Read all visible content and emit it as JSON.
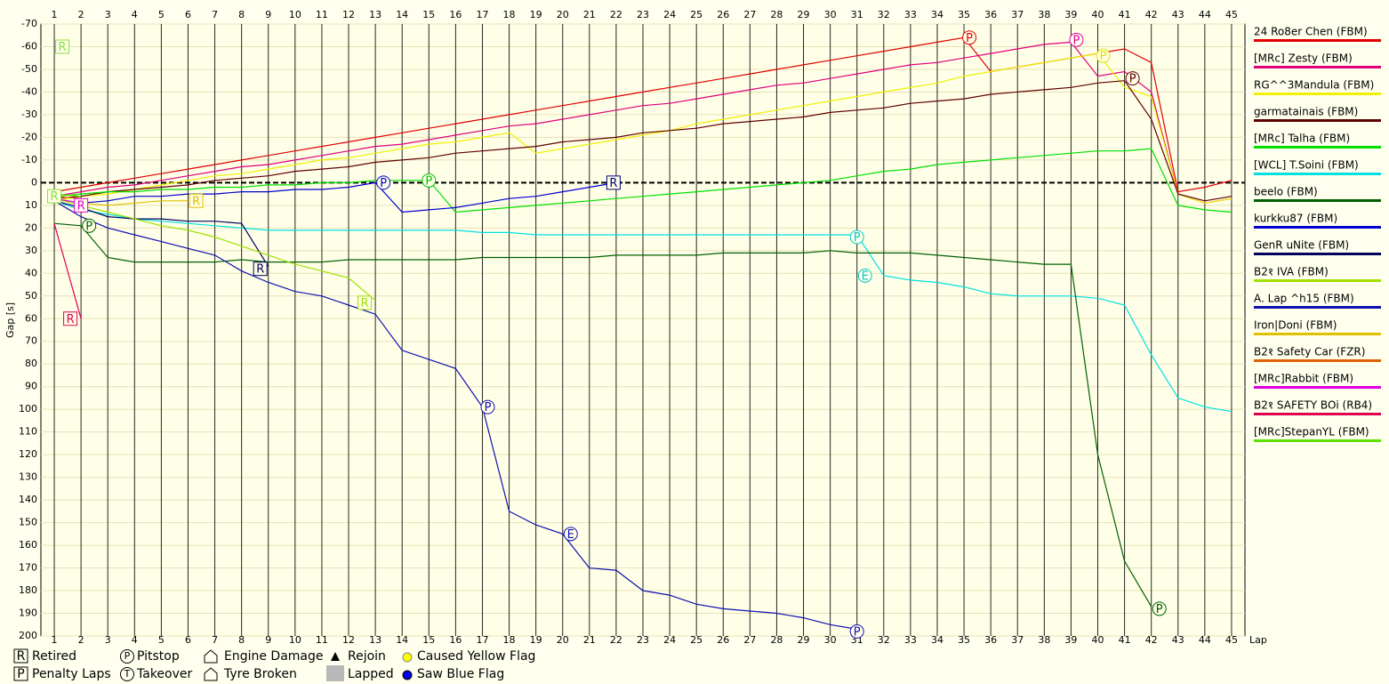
{
  "chart_data": {
    "type": "line",
    "ylabel": "Gap [s]",
    "xlabel": "Lap",
    "xlim": [
      0.5,
      45.5
    ],
    "xticks": [
      1,
      2,
      3,
      4,
      5,
      6,
      7,
      8,
      9,
      10,
      11,
      12,
      13,
      14,
      15,
      16,
      17,
      18,
      19,
      20,
      21,
      22,
      23,
      24,
      25,
      26,
      27,
      28,
      29,
      30,
      31,
      32,
      33,
      34,
      35,
      36,
      37,
      38,
      39,
      40,
      41,
      42,
      43,
      44,
      45
    ],
    "ylim": [
      -70,
      200
    ],
    "yticks": [
      -70,
      -60,
      -50,
      -40,
      -30,
      -20,
      -10,
      0,
      10,
      20,
      30,
      40,
      50,
      60,
      70,
      80,
      90,
      100,
      110,
      120,
      130,
      140,
      150,
      160,
      170,
      180,
      190,
      200
    ],
    "y_inverted": true,
    "grid": true,
    "x": [
      1,
      2,
      3,
      4,
      5,
      6,
      7,
      8,
      9,
      10,
      11,
      12,
      13,
      14,
      15,
      16,
      17,
      18,
      19,
      20,
      21,
      22,
      23,
      24,
      25,
      26,
      27,
      28,
      29,
      30,
      31,
      32,
      33,
      34,
      35,
      36,
      37,
      38,
      39,
      40,
      41,
      42,
      43,
      44,
      45
    ],
    "series": [
      {
        "name": "24 Ro8er Chen (FBM)",
        "color": "#e00000",
        "values": [
          4,
          2,
          0,
          -2,
          -4,
          -6,
          -8,
          -10,
          -12,
          -14,
          -16,
          -18,
          -20,
          -22,
          -24,
          -26,
          -28,
          -30,
          -32,
          -34,
          -36,
          -38,
          -40,
          -42,
          -44,
          -46,
          -48,
          -50,
          -52,
          -54,
          -56,
          -58,
          -60,
          -62,
          -64,
          -49,
          -51,
          -53,
          -55,
          -57,
          -59,
          -53,
          4,
          2,
          -1
        ]
      },
      {
        "name": "[MRc] Zesty (FBM)",
        "color": "#e0007a",
        "values": [
          6,
          4,
          2,
          1,
          -1,
          -3,
          -5,
          -7,
          -8,
          -10,
          -12,
          -14,
          -16,
          -17,
          -19,
          -21,
          -23,
          -25,
          -26,
          -28,
          -30,
          -32,
          -34,
          -35,
          -37,
          -39,
          -41,
          -43,
          -44,
          -46,
          -48,
          -50,
          -52,
          -53,
          -55,
          -57,
          -59,
          -61,
          -62,
          -47,
          -49,
          -40,
          5,
          9,
          7
        ]
      },
      {
        "name": "RG^^3Mandula (FBM)",
        "color": "#f0f000",
        "values": [
          8,
          6,
          5,
          3,
          1,
          -1,
          -3,
          -4,
          -6,
          -8,
          -10,
          -11,
          -13,
          -15,
          -17,
          -18,
          -20,
          -22,
          -13,
          -15,
          -17,
          -19,
          -21,
          -23,
          -26,
          -28,
          -30,
          -32,
          -34,
          -36,
          -38,
          -40,
          -42,
          -44,
          -47,
          -49,
          -51,
          -53,
          -55,
          -57,
          -42,
          -38,
          5,
          9,
          7
        ]
      },
      {
        "name": "garmatainais (FBM)",
        "color": "#600000",
        "values": [
          7,
          6,
          4,
          3,
          2,
          1,
          -1,
          -2,
          -3,
          -5,
          -6,
          -7,
          -9,
          -10,
          -11,
          -13,
          -14,
          -15,
          -16,
          -18,
          -19,
          -20,
          -22,
          -23,
          -24,
          -26,
          -27,
          -28,
          -29,
          -31,
          -32,
          -33,
          -35,
          -36,
          -37,
          -39,
          -40,
          -41,
          -42,
          -44,
          -45,
          -28,
          5,
          8,
          6
        ]
      },
      {
        "name": "[MRc] Talha (FBM)",
        "color": "#00e000",
        "values": [
          6,
          5,
          4,
          4,
          3,
          3,
          2,
          2,
          1,
          1,
          0,
          0,
          -1,
          -1,
          -1,
          13,
          12,
          11,
          10,
          9,
          8,
          7,
          6,
          5,
          4,
          3,
          2,
          1,
          0,
          -1,
          -3,
          -5,
          -6,
          -8,
          -9,
          -10,
          -11,
          -12,
          -13,
          -14,
          -14,
          -15,
          10,
          12,
          13
        ]
      },
      {
        "name": "[WCL] T.Soini (FBM)",
        "color": "#00e0e0",
        "values": [
          8,
          12,
          14,
          16,
          17,
          18,
          19,
          20,
          21,
          21,
          21,
          21,
          21,
          21,
          21,
          21,
          22,
          22,
          23,
          23,
          23,
          23,
          23,
          23,
          23,
          23,
          23,
          23,
          23,
          23,
          23,
          41,
          43,
          44,
          46,
          49,
          50,
          50,
          50,
          51,
          54,
          76,
          95,
          99,
          101
        ]
      },
      {
        "name": "beelo (FBM)",
        "color": "#006000",
        "values": [
          18,
          19,
          33,
          35,
          35,
          35,
          35,
          34,
          35,
          35,
          35,
          34,
          34,
          34,
          34,
          34,
          33,
          33,
          33,
          33,
          33,
          32,
          32,
          32,
          32,
          31,
          31,
          31,
          31,
          30,
          31,
          31,
          31,
          32,
          33,
          34,
          35,
          36,
          36,
          120,
          167,
          187,
          null,
          null,
          null
        ]
      },
      {
        "name": "kurkku87 (FBM)",
        "color": "#0000d0",
        "values": [
          7,
          9,
          8,
          6,
          6,
          5,
          5,
          4,
          4,
          3,
          3,
          2,
          0,
          13,
          12,
          11,
          9,
          7,
          6,
          4,
          2,
          0,
          null,
          null,
          null,
          null,
          null,
          null,
          null,
          null,
          null,
          null,
          null,
          null,
          null,
          null,
          null,
          null,
          null,
          null,
          null,
          null,
          null,
          null,
          null
        ]
      },
      {
        "name": "GenR uNite (FBM)",
        "color": "#000060",
        "values": [
          8,
          11,
          15,
          16,
          16,
          17,
          17,
          18,
          37,
          null,
          null,
          null,
          null,
          null,
          null,
          null,
          null,
          null,
          null,
          null,
          null,
          null,
          null,
          null,
          null,
          null,
          null,
          null,
          null,
          null,
          null,
          null,
          null,
          null,
          null,
          null,
          null,
          null,
          null,
          null,
          null,
          null,
          null,
          null,
          null
        ]
      },
      {
        "name": "B2१ IVA (FBM)",
        "color": "#a0e000",
        "values": [
          7,
          10,
          13,
          16,
          19,
          21,
          24,
          28,
          32,
          36,
          39,
          42,
          52,
          null,
          null,
          null,
          null,
          null,
          null,
          null,
          null,
          null,
          null,
          null,
          null,
          null,
          null,
          null,
          null,
          null,
          null,
          null,
          null,
          null,
          null,
          null,
          null,
          null,
          null,
          null,
          null,
          null,
          null,
          null,
          null
        ]
      },
      {
        "name": "A. Lap ^h15 (FBM)",
        "color": "#1010b0",
        "values": [
          8,
          15,
          20,
          23,
          26,
          29,
          32,
          39,
          44,
          48,
          50,
          54,
          58,
          74,
          78,
          82,
          99,
          145,
          151,
          155,
          170,
          171,
          180,
          182,
          186,
          188,
          189,
          190,
          192,
          195,
          197,
          null,
          null,
          null,
          null,
          null,
          null,
          null,
          null,
          null,
          null,
          null,
          null,
          null,
          null
        ]
      },
      {
        "name": "Iron|Doni (FBM)",
        "color": "#e0c000",
        "values": [
          7,
          9,
          10,
          9,
          8,
          8,
          null,
          null,
          null,
          null,
          null,
          null,
          null,
          null,
          null,
          null,
          null,
          null,
          null,
          null,
          null,
          null,
          null,
          null,
          null,
          null,
          null,
          null,
          null,
          null,
          null,
          null,
          null,
          null,
          null,
          null,
          null,
          null,
          null,
          null,
          null,
          null,
          null,
          null,
          null
        ]
      },
      {
        "name": "B2१ Safety Car (FZR)",
        "color": "#e06000",
        "values": [
          6,
          7,
          null,
          null,
          null,
          null,
          null,
          null,
          null,
          null,
          null,
          null,
          null,
          null,
          null,
          null,
          null,
          null,
          null,
          null,
          null,
          null,
          null,
          null,
          null,
          null,
          null,
          null,
          null,
          null,
          null,
          null,
          null,
          null,
          null,
          null,
          null,
          null,
          null,
          null,
          null,
          null,
          null,
          null,
          null
        ]
      },
      {
        "name": "[MRc]Rabbit (FBM)",
        "color": "#e000e0",
        "values": [
          7,
          9,
          null,
          null,
          null,
          null,
          null,
          null,
          null,
          null,
          null,
          null,
          null,
          null,
          null,
          null,
          null,
          null,
          null,
          null,
          null,
          null,
          null,
          null,
          null,
          null,
          null,
          null,
          null,
          null,
          null,
          null,
          null,
          null,
          null,
          null,
          null,
          null,
          null,
          null,
          null,
          null,
          null,
          null,
          null
        ]
      },
      {
        "name": "B2१ SAFETY BOi (RB4)",
        "color": "#e00050",
        "values": [
          18,
          60,
          null,
          null,
          null,
          null,
          null,
          null,
          null,
          null,
          null,
          null,
          null,
          null,
          null,
          null,
          null,
          null,
          null,
          null,
          null,
          null,
          null,
          null,
          null,
          null,
          null,
          null,
          null,
          null,
          null,
          null,
          null,
          null,
          null,
          null,
          null,
          null,
          null,
          null,
          null,
          null,
          null,
          null,
          null
        ]
      },
      {
        "name": "[MRc]StepanYL (FBM)",
        "color": "#60e000",
        "values": [
          5,
          6,
          null,
          null,
          null,
          null,
          null,
          null,
          null,
          null,
          null,
          null,
          null,
          null,
          null,
          null,
          null,
          null,
          null,
          null,
          null,
          null,
          null,
          null,
          null,
          null,
          null,
          null,
          null,
          null,
          null,
          null,
          null,
          null,
          null,
          null,
          null,
          null,
          null,
          null,
          null,
          null,
          null,
          null,
          null
        ]
      }
    ],
    "events": [
      {
        "x": 1.3,
        "y": -60,
        "label": "R",
        "color": "#88dd44"
      },
      {
        "x": 1,
        "y": 6,
        "label": "R",
        "color": "#88dd44"
      },
      {
        "x": 1.6,
        "y": 60,
        "label": "R",
        "color": "#e00050"
      },
      {
        "x": 2,
        "y": 10,
        "label": "R",
        "color": "#e000e0"
      },
      {
        "x": 2.3,
        "y": 19,
        "label": "P",
        "color": "#006000"
      },
      {
        "x": 6.3,
        "y": 8,
        "label": "R",
        "color": "#e0c000"
      },
      {
        "x": 8.7,
        "y": 38,
        "label": "R",
        "color": "#000060"
      },
      {
        "x": 12.6,
        "y": 53,
        "label": "R",
        "color": "#a0e000"
      },
      {
        "x": 13.3,
        "y": 0,
        "label": "P",
        "color": "#0000d0"
      },
      {
        "x": 15,
        "y": -1,
        "label": "P",
        "color": "#00c000"
      },
      {
        "x": 21.9,
        "y": 0,
        "label": "R",
        "color": "#000080"
      },
      {
        "x": 17.2,
        "y": 99,
        "label": "P",
        "color": "#1010b0"
      },
      {
        "x": 20.3,
        "y": 155,
        "label": "E",
        "color": "#1010b0"
      },
      {
        "x": 31,
        "y": 24,
        "label": "P",
        "color": "#00c8c8"
      },
      {
        "x": 31.3,
        "y": 41,
        "label": "E",
        "color": "#00c8c8"
      },
      {
        "x": 31,
        "y": 198,
        "label": "P",
        "color": "#1010b0"
      },
      {
        "x": 35.2,
        "y": -64,
        "label": "P",
        "color": "#e00000"
      },
      {
        "x": 39.2,
        "y": -63,
        "label": "P",
        "color": "#e000a0"
      },
      {
        "x": 40.2,
        "y": -56,
        "label": "P",
        "color": "#e0e000"
      },
      {
        "x": 41.3,
        "y": -46,
        "label": "P",
        "color": "#600000"
      },
      {
        "x": 42.3,
        "y": 188,
        "label": "P",
        "color": "#006000"
      }
    ],
    "legend_keys": [
      "Retired",
      "Penalty Laps",
      "Pitstop",
      "Takeover",
      "Engine Damage",
      "Tyre Broken",
      "Rejoin",
      "Lapped",
      "Caused Yellow Flag",
      "Saw Blue Flag"
    ]
  }
}
